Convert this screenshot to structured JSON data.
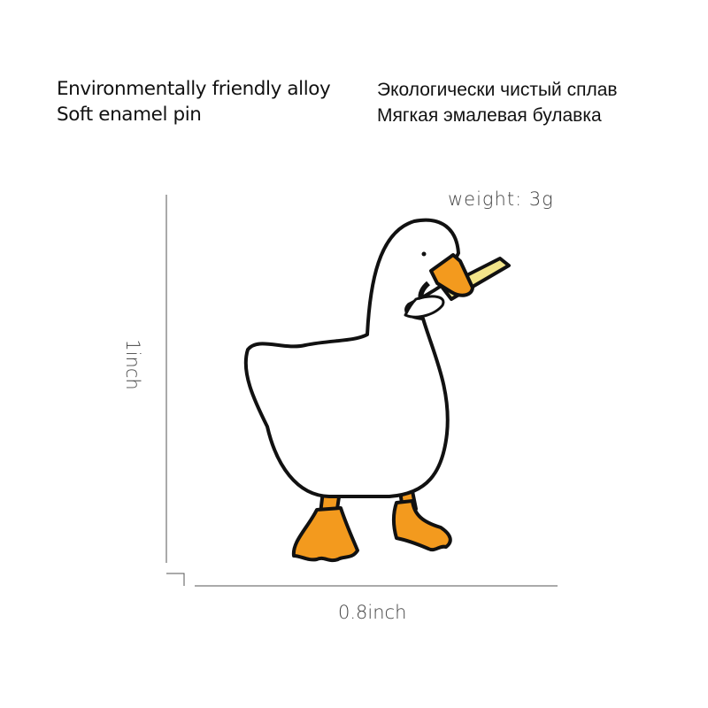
{
  "texts": {
    "en_line1": "Environmentally friendly alloy",
    "en_line2": "Soft enamel pin",
    "ru_line1": "Экологически чистый сплав",
    "ru_line2": "Мягкая эмалевая булавка"
  },
  "specs": {
    "weight": "weight:  3g",
    "height": "1inch",
    "width": "0.8inch"
  },
  "colors": {
    "outline": "#111111",
    "body": "#ffffff",
    "beak_feet": "#f39a1e",
    "knife": "#f3e58a",
    "dimension_line": "#555555"
  }
}
